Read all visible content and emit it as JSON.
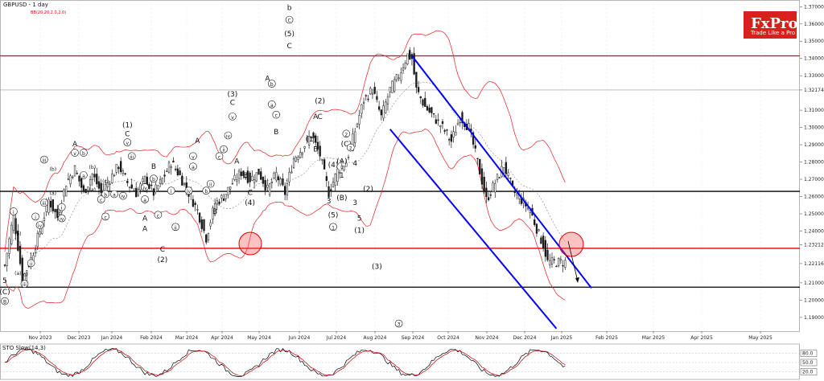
{
  "header": {
    "title": "GBPUSD - 1 day",
    "indicator": "BB(20,20,2.0,2.0)"
  },
  "logo": {
    "brand": "FxPro",
    "tagline": "Trade Like a Pro",
    "color": "#d8201d"
  },
  "colors": {
    "candle_up": "#1a1a1a",
    "candle_down": "#1a1a1a",
    "hline_red": "#e00000",
    "hline_black": "#000000",
    "channel": "#0000ff",
    "bb": "#e02020",
    "stoch_main": "#000000",
    "stoch_signal": "#c00000"
  },
  "chart_data": {
    "type": "candlestick",
    "title": "GBPUSD - 1 day",
    "y_axis_labels": [
      "1.37000",
      "1.36000",
      "1.35000",
      "1.34000",
      "1.33000",
      "1.32174",
      "1.31000",
      "1.30000",
      "1.29000",
      "1.28000",
      "1.27000",
      "1.26000",
      "1.25000",
      "1.24000",
      "1.23212",
      "1.22116",
      "1.21000",
      "1.20000",
      "1.19000"
    ],
    "x_axis_labels": [
      "Nov 2023",
      "Dec 2023",
      "Jan 2024",
      "Feb 2024",
      "Mar 2024",
      "Apr 2024",
      "May 2024",
      "Jun 2024",
      "Jul 2024",
      "Aug 2024",
      "Sep 2024",
      "Oct 2024",
      "Nov 2024",
      "Dec 2024",
      "Jan 2025",
      "Feb 2025",
      "Mar 2025",
      "Apr 2025",
      "May 2025"
    ],
    "ylim": [
      1.182,
      1.372
    ],
    "price_path": [
      [
        0,
        1.22
      ],
      [
        4,
        1.25
      ],
      [
        8,
        1.212
      ],
      [
        12,
        1.224
      ],
      [
        16,
        1.24
      ],
      [
        20,
        1.258
      ],
      [
        24,
        1.248
      ],
      [
        28,
        1.268
      ],
      [
        32,
        1.276
      ],
      [
        36,
        1.262
      ],
      [
        40,
        1.273
      ],
      [
        44,
        1.262
      ],
      [
        48,
        1.27
      ],
      [
        52,
        1.278
      ],
      [
        56,
        1.268
      ],
      [
        60,
        1.262
      ],
      [
        64,
        1.27
      ],
      [
        68,
        1.262
      ],
      [
        72,
        1.27
      ],
      [
        76,
        1.28
      ],
      [
        80,
        1.272
      ],
      [
        84,
        1.262
      ],
      [
        88,
        1.252
      ],
      [
        92,
        1.236
      ],
      [
        96,
        1.256
      ],
      [
        100,
        1.26
      ],
      [
        104,
        1.268
      ],
      [
        108,
        1.274
      ],
      [
        112,
        1.27
      ],
      [
        116,
        1.274
      ],
      [
        120,
        1.264
      ],
      [
        124,
        1.273
      ],
      [
        128,
        1.262
      ],
      [
        132,
        1.282
      ],
      [
        136,
        1.288
      ],
      [
        140,
        1.296
      ],
      [
        144,
        1.284
      ],
      [
        148,
        1.262
      ],
      [
        152,
        1.275
      ],
      [
        156,
        1.28
      ],
      [
        160,
        1.298
      ],
      [
        164,
        1.316
      ],
      [
        168,
        1.322
      ],
      [
        172,
        1.306
      ],
      [
        176,
        1.322
      ],
      [
        180,
        1.33
      ],
      [
        184,
        1.342
      ],
      [
        186,
        1.34
      ],
      [
        188,
        1.322
      ],
      [
        192,
        1.312
      ],
      [
        196,
        1.306
      ],
      [
        200,
        1.3
      ],
      [
        204,
        1.292
      ],
      [
        208,
        1.306
      ],
      [
        212,
        1.3
      ],
      [
        216,
        1.28
      ],
      [
        220,
        1.258
      ],
      [
        224,
        1.268
      ],
      [
        228,
        1.278
      ],
      [
        232,
        1.264
      ],
      [
        236,
        1.258
      ],
      [
        240,
        1.252
      ],
      [
        244,
        1.238
      ],
      [
        246,
        1.232
      ],
      [
        248,
        1.222
      ]
    ],
    "horizontal_lines": [
      {
        "price": 1.3415,
        "color": "#e00000"
      },
      {
        "price": 1.263,
        "color": "#000000"
      },
      {
        "price": 1.23,
        "color": "#e00000"
      },
      {
        "price": 1.2075,
        "color": "#000000"
      }
    ],
    "channel_lines": [
      {
        "from": [
          186,
          1.3415
        ],
        "to": [
          268,
          1.207
        ]
      },
      {
        "from": [
          176,
          1.299
        ],
        "to": [
          252,
          1.1835
        ]
      }
    ],
    "wave_labels": [
      {
        "t": "5",
        "i": 0,
        "p": 1.21
      },
      {
        "t": "(C)",
        "i": 0,
        "p": 1.2035
      },
      {
        "t": "B",
        "i": 0,
        "p": 1.198,
        "circ": true
      },
      {
        "t": "i",
        "i": 4,
        "p": 1.25,
        "circ": true
      },
      {
        "t": "(b)",
        "i": 6,
        "p": 1.2375,
        "small": true
      },
      {
        "t": "(a)",
        "i": 6,
        "p": 1.2145,
        "small": true
      },
      {
        "t": "(c)",
        "i": 9,
        "p": 1.214,
        "small": true
      },
      {
        "t": "iii",
        "i": 9,
        "p": 1.208,
        "circ": true
      },
      {
        "t": "ii",
        "i": 12,
        "p": 1.22,
        "circ": true
      },
      {
        "t": "i",
        "i": 14,
        "p": 1.247,
        "circ": true
      },
      {
        "t": "iv",
        "i": 16,
        "p": 1.242,
        "circ": true
      },
      {
        "t": "iii",
        "i": 18,
        "p": 1.255,
        "circ": true
      },
      {
        "t": "iii",
        "i": 18,
        "p": 1.28,
        "circ": true
      },
      {
        "t": "(b)",
        "i": 22,
        "p": 1.275,
        "small": true
      },
      {
        "t": "(a)",
        "i": 22,
        "p": 1.261,
        "small": true
      },
      {
        "t": "iv",
        "i": 26,
        "p": 1.246,
        "circ": true
      },
      {
        "t": "i",
        "i": 26,
        "p": 1.2525,
        "circ": true
      },
      {
        "t": "A",
        "i": 32,
        "p": 1.289
      },
      {
        "t": "v",
        "i": 32,
        "p": 1.284,
        "circ": true
      },
      {
        "t": "b",
        "i": 36,
        "p": 1.284,
        "circ": true
      },
      {
        "t": "a",
        "i": 36,
        "p": 1.271,
        "circ": true
      },
      {
        "t": "(b)",
        "i": 40,
        "p": 1.276,
        "small": true
      },
      {
        "t": "(a)",
        "i": 40,
        "p": 1.263,
        "small": true
      },
      {
        "t": "(c)",
        "i": 46,
        "p": 1.268,
        "small": true
      },
      {
        "t": "c",
        "i": 44,
        "p": 1.257,
        "circ": true
      },
      {
        "t": "b",
        "i": 46,
        "p": 1.26,
        "circ": true
      },
      {
        "t": "c",
        "i": 46,
        "p": 1.247,
        "circ": true
      },
      {
        "t": "a",
        "i": 50,
        "p": 1.26,
        "circ": true
      },
      {
        "t": "iv",
        "i": 54,
        "p": 1.259,
        "circ": true
      },
      {
        "t": "(1)",
        "i": 56,
        "p": 1.3
      },
      {
        "t": "C",
        "i": 56,
        "p": 1.295
      },
      {
        "t": "v",
        "i": 56,
        "p": 1.29,
        "circ": true
      },
      {
        "t": "iii",
        "i": 58,
        "p": 1.282,
        "circ": true
      },
      {
        "t": "a",
        "i": 64,
        "p": 1.257,
        "circ": true
      },
      {
        "t": "iv",
        "i": 64,
        "p": 1.264,
        "circ": true
      },
      {
        "t": "B",
        "i": 68,
        "p": 1.276
      },
      {
        "t": "b",
        "i": 68,
        "p": 1.269,
        "circ": true
      },
      {
        "t": "A",
        "i": 64,
        "p": 1.246
      },
      {
        "t": "c",
        "i": 70,
        "p": 1.248,
        "circ": true
      },
      {
        "t": "A",
        "i": 64,
        "p": 1.24
      },
      {
        "t": "C",
        "i": 72,
        "p": 1.228
      },
      {
        "t": "(2)",
        "i": 72,
        "p": 1.222
      },
      {
        "t": "ii",
        "i": 78,
        "p": 1.241,
        "circ": true
      },
      {
        "t": "i",
        "i": 76,
        "p": 1.262,
        "circ": true
      },
      {
        "t": "iv",
        "i": 84,
        "p": 1.262,
        "circ": true
      },
      {
        "t": "v",
        "i": 86,
        "p": 1.282,
        "circ": true
      },
      {
        "t": "A",
        "i": 88,
        "p": 1.291
      },
      {
        "t": "a",
        "i": 86,
        "p": 1.276,
        "circ": true
      },
      {
        "t": "b",
        "i": 92,
        "p": 1.262,
        "circ": true
      },
      {
        "t": "ii",
        "i": 94,
        "p": 1.266,
        "circ": true
      },
      {
        "t": "B",
        "i": 96,
        "p": 1.25
      },
      {
        "t": "c",
        "i": 98,
        "p": 1.282,
        "circ": true
      },
      {
        "t": "(3)",
        "i": 104,
        "p": 1.318
      },
      {
        "t": "C",
        "i": 104,
        "p": 1.313
      },
      {
        "t": "v",
        "i": 104,
        "p": 1.305,
        "circ": true
      },
      {
        "t": "iv",
        "i": 102,
        "p": 1.294,
        "circ": true
      },
      {
        "t": "ii",
        "i": 100,
        "p": 1.286,
        "circ": true
      },
      {
        "t": "A",
        "i": 106,
        "p": 1.279
      },
      {
        "t": "B",
        "i": 110,
        "p": 1.271
      },
      {
        "t": "C",
        "i": 112,
        "p": 1.261
      },
      {
        "t": "(4)",
        "i": 112,
        "p": 1.255
      },
      {
        "t": "A",
        "i": 120,
        "p": 1.327
      },
      {
        "t": "b",
        "i": 122,
        "p": 1.324,
        "circ": true
      },
      {
        "t": "a",
        "i": 122,
        "p": 1.312,
        "circ": true
      },
      {
        "t": "c",
        "i": 124,
        "p": 1.306,
        "circ": true
      },
      {
        "t": "B",
        "i": 124,
        "p": 1.296
      },
      {
        "t": "b",
        "i": 130,
        "p": 1.368
      },
      {
        "t": "C",
        "i": 130,
        "p": 1.361,
        "circ": true
      },
      {
        "t": "(5)",
        "i": 130,
        "p": 1.353
      },
      {
        "t": "C",
        "i": 130,
        "p": 1.346
      },
      {
        "t": "(2)",
        "i": 144,
        "p": 1.314
      },
      {
        "t": "A",
        "i": 142,
        "p": 1.305
      },
      {
        "t": "C",
        "i": 144,
        "p": 1.305
      },
      {
        "t": "(1)",
        "i": 140,
        "p": 1.292
      },
      {
        "t": "B",
        "i": 142,
        "p": 1.286
      },
      {
        "t": "2",
        "i": 156,
        "p": 1.295,
        "circ": true
      },
      {
        "t": "(C)",
        "i": 156,
        "p": 1.289
      },
      {
        "t": "2",
        "i": 158,
        "p": 1.287,
        "circ": true
      },
      {
        "t": "(A)",
        "i": 154,
        "p": 1.279
      },
      {
        "t": "4",
        "i": 160,
        "p": 1.278
      },
      {
        "t": "1",
        "i": 154,
        "p": 1.271
      },
      {
        "t": "(4)",
        "i": 150,
        "p": 1.277
      },
      {
        "t": "3",
        "i": 148,
        "p": 1.256
      },
      {
        "t": "(B)",
        "i": 154,
        "p": 1.258
      },
      {
        "t": "3",
        "i": 160,
        "p": 1.255
      },
      {
        "t": "(2)",
        "i": 166,
        "p": 1.263
      },
      {
        "t": "5",
        "i": 162,
        "p": 1.246
      },
      {
        "t": "(5)",
        "i": 150,
        "p": 1.248
      },
      {
        "t": "1",
        "i": 150,
        "p": 1.241,
        "circ": true
      },
      {
        "t": "(1)",
        "i": 162,
        "p": 1.239
      },
      {
        "t": "(3)",
        "i": 170,
        "p": 1.218
      },
      {
        "t": "3",
        "i": 180,
        "p": 1.185,
        "circ": true
      }
    ],
    "stochastic": {
      "label": "STO Slow(14,3)",
      "levels": [
        "80.0",
        "50.0",
        "20.0"
      ]
    }
  }
}
